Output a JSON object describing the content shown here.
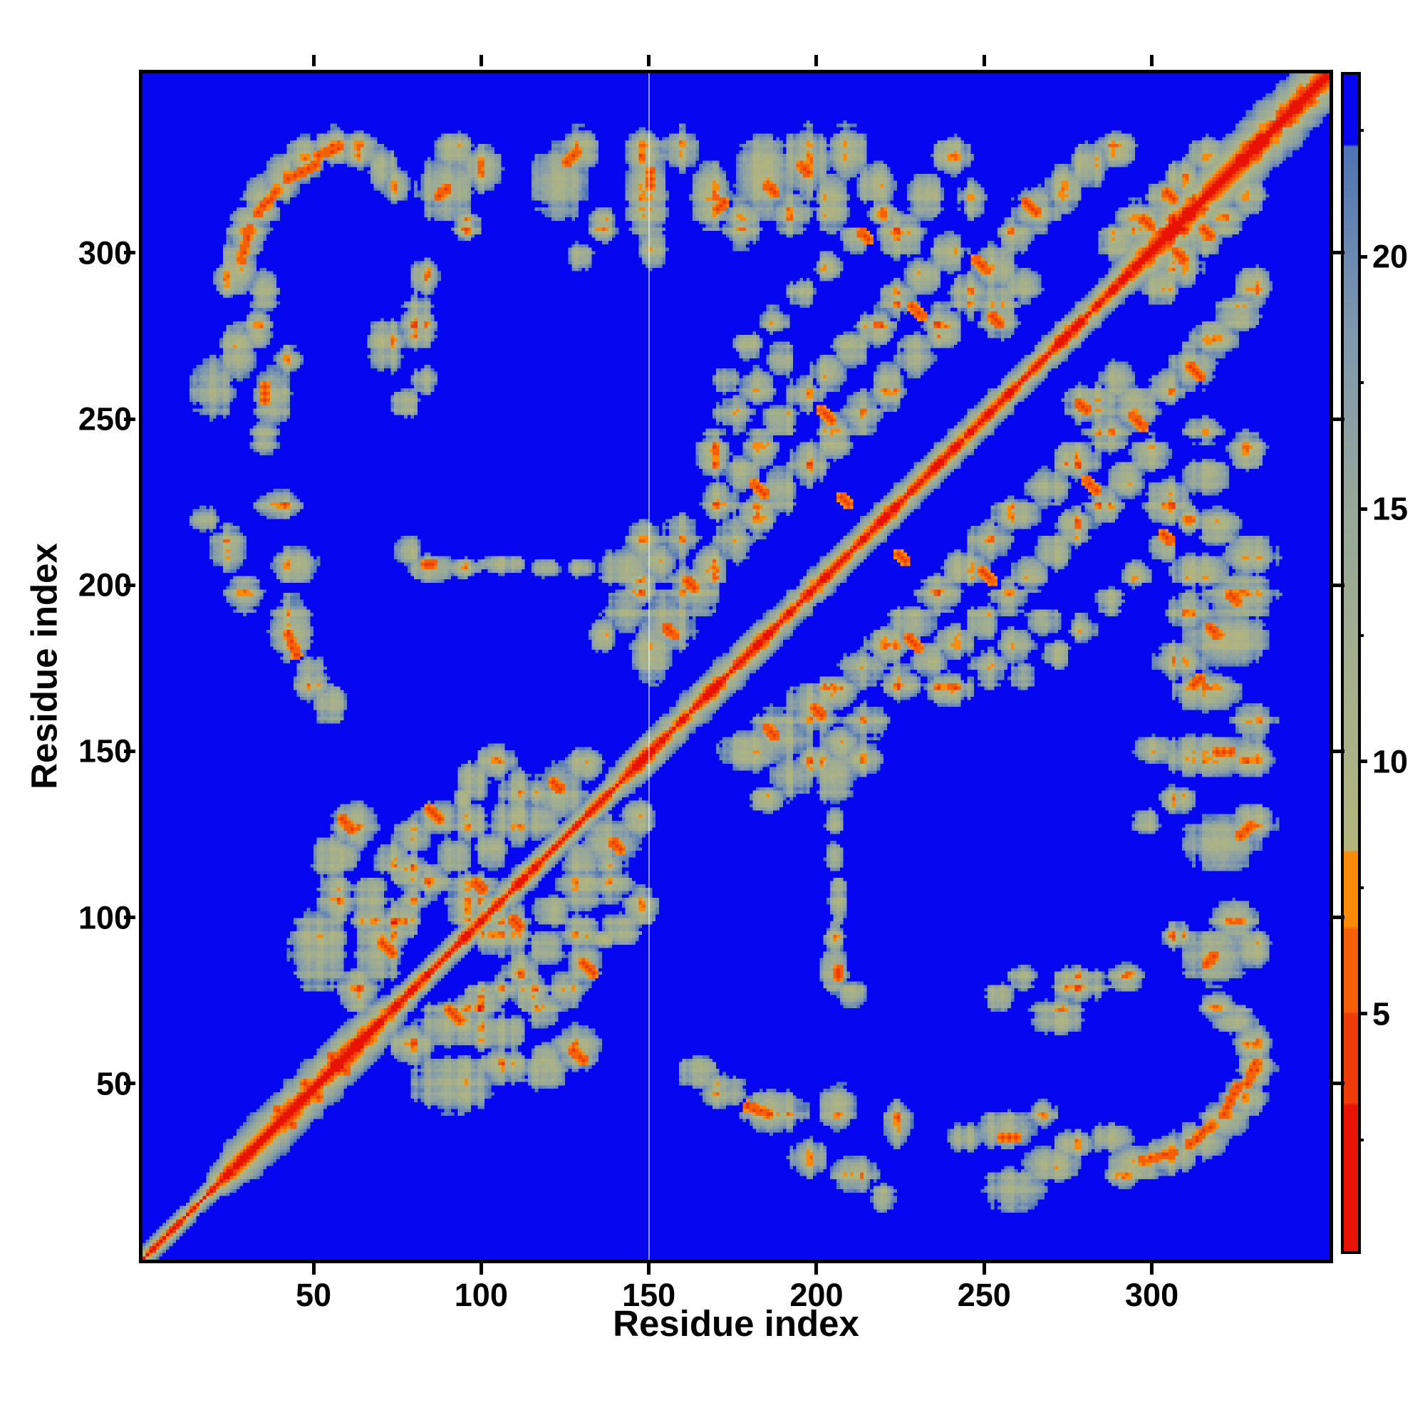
{
  "figure": {
    "title": "",
    "x_axis_label": "Residue index",
    "y_axis_label": "Residue index"
  },
  "chart_data": {
    "type": "heatmap",
    "title": "",
    "xlabel": "Residue index",
    "ylabel": "Residue index",
    "x_range": [
      -1,
      353
    ],
    "y_range": [
      -3,
      354
    ],
    "x_ticks": [
      50,
      100,
      150,
      200,
      250,
      300
    ],
    "y_ticks": [
      50,
      100,
      150,
      200,
      250,
      300
    ],
    "grid": false,
    "legend": "none",
    "n_residues": 354,
    "symmetric": true,
    "description": "Residue-residue distance map: red diagonal (near-zero distance), orange close contacts, olive-gray mid-range distances, blue beyond cutoff",
    "artifact_line_x": 150,
    "colorbar": {
      "position": "right",
      "range": [
        0.3,
        23.6
      ],
      "ticks": [
        5,
        10,
        15,
        20
      ],
      "minor_ticks": [
        2.5,
        7.5,
        12.5,
        17.5,
        22.5
      ]
    },
    "colormap": {
      "bands": [
        {
          "max": 3.2,
          "color": "#e81205"
        },
        {
          "max": 5.0,
          "color": "#ef3b08"
        },
        {
          "max": 6.7,
          "color": "#f56006"
        },
        {
          "max": 8.2,
          "color": "#fa8a07"
        }
      ],
      "gradient": {
        "min": 8.2,
        "max": 22.2,
        "stops": [
          "#b3b57c",
          "#a4af8d",
          "#96a79b",
          "#7e97af",
          "#4f74b4"
        ]
      },
      "over_color": "#0606f0",
      "max_value": 24
    },
    "diagonal_band": {
      "segments": [
        [
          0,
          30,
          4.2
        ],
        [
          30,
          68,
          10
        ],
        [
          68,
          145,
          5.5
        ],
        [
          145,
          185,
          7.5
        ],
        [
          185,
          300,
          6.5
        ],
        [
          300,
          354,
          12
        ]
      ]
    },
    "contact_clusters": [
      [
        28,
        296,
        4,
        6
      ],
      [
        31,
        306,
        4,
        6
      ],
      [
        35,
        315,
        4,
        6
      ],
      [
        41,
        322,
        4,
        5
      ],
      [
        48,
        328,
        4,
        5
      ],
      [
        56,
        332,
        4,
        4
      ],
      [
        64,
        331,
        4,
        4
      ],
      [
        71,
        325,
        3,
        5
      ],
      [
        36,
        288,
        3,
        5
      ],
      [
        34,
        278,
        3,
        5
      ],
      [
        25,
        292,
        3,
        4
      ],
      [
        43,
        268,
        3,
        3
      ],
      [
        38,
        257,
        4,
        7
      ],
      [
        36,
        245,
        3,
        4
      ],
      [
        40,
        225,
        5,
        3
      ],
      [
        45,
        207,
        5,
        4
      ],
      [
        44,
        188,
        5,
        7
      ],
      [
        50,
        173,
        4,
        5
      ],
      [
        55,
        165,
        4,
        4
      ],
      [
        20,
        260,
        5,
        7
      ],
      [
        28,
        270,
        4,
        6
      ],
      [
        25,
        212,
        4,
        5
      ],
      [
        30,
        198,
        4,
        4
      ],
      [
        18,
        220,
        3,
        3
      ],
      [
        84,
        293,
        3,
        4
      ],
      [
        82,
        279,
        4,
        6
      ],
      [
        84,
        262,
        3,
        3
      ],
      [
        78,
        255,
        3,
        3
      ],
      [
        72,
        272,
        4,
        6
      ],
      [
        90,
        319,
        6,
        7
      ],
      [
        101,
        325,
        4,
        5
      ],
      [
        92,
        331,
        4,
        4
      ],
      [
        96,
        308,
        3,
        3
      ],
      [
        75,
        320,
        3,
        4
      ],
      [
        124,
        321,
        6,
        8
      ],
      [
        130,
        331,
        4,
        5
      ],
      [
        137,
        308,
        3,
        4
      ],
      [
        130,
        299,
        3,
        3
      ],
      [
        150,
        317,
        5,
        9
      ],
      [
        152,
        301,
        3,
        4
      ],
      [
        149,
        330,
        4,
        5
      ],
      [
        160,
        331,
        4,
        5
      ],
      [
        169,
        317,
        5,
        7
      ],
      [
        178,
        309,
        4,
        6
      ],
      [
        185,
        323,
        6,
        9
      ],
      [
        197,
        327,
        5,
        8
      ],
      [
        205,
        315,
        4,
        6
      ],
      [
        193,
        312,
        4,
        5
      ],
      [
        210,
        330,
        4,
        6
      ],
      [
        218,
        320,
        4,
        5
      ],
      [
        226,
        305,
        5,
        5
      ],
      [
        233,
        317,
        4,
        5
      ],
      [
        241,
        329,
        4,
        4
      ],
      [
        247,
        316,
        3,
        4
      ],
      [
        254,
        296,
        5,
        5
      ],
      [
        260,
        305,
        4,
        4
      ],
      [
        266,
        313,
        5,
        5
      ],
      [
        274,
        319,
        4,
        5
      ],
      [
        282,
        326,
        4,
        5
      ],
      [
        290,
        331,
        4,
        4
      ],
      [
        255,
        283,
        5,
        6
      ],
      [
        262,
        290,
        4,
        4
      ],
      [
        246,
        287,
        4,
        5
      ],
      [
        238,
        278,
        4,
        5
      ],
      [
        230,
        269,
        4,
        5
      ],
      [
        222,
        260,
        4,
        5
      ],
      [
        214,
        252,
        4,
        5
      ],
      [
        206,
        245,
        4,
        5
      ],
      [
        198,
        237,
        4,
        5
      ],
      [
        190,
        229,
        4,
        5
      ],
      [
        183,
        222,
        4,
        5
      ],
      [
        176,
        214,
        4,
        5
      ],
      [
        169,
        206,
        4,
        5
      ],
      [
        163,
        199,
        6,
        6
      ],
      [
        157,
        190,
        6,
        7
      ],
      [
        152,
        180,
        5,
        6
      ],
      [
        160,
        215,
        4,
        5
      ],
      [
        154,
        208,
        4,
        4
      ],
      [
        148,
        200,
        4,
        4
      ],
      [
        143,
        193,
        4,
        5
      ],
      [
        137,
        186,
        3,
        4
      ],
      [
        172,
        226,
        4,
        4
      ],
      [
        178,
        234,
        4,
        4
      ],
      [
        184,
        242,
        4,
        4
      ],
      [
        190,
        250,
        4,
        4
      ],
      [
        197,
        258,
        4,
        4
      ],
      [
        204,
        264,
        4,
        4
      ],
      [
        211,
        271,
        4,
        4
      ],
      [
        218,
        278,
        4,
        4
      ],
      [
        225,
        286,
        4,
        4
      ],
      [
        232,
        293,
        4,
        4
      ],
      [
        240,
        300,
        4,
        4
      ],
      [
        170,
        240,
        4,
        5
      ],
      [
        176,
        252,
        4,
        4
      ],
      [
        183,
        260,
        4,
        4
      ],
      [
        190,
        268,
        3,
        4
      ],
      [
        174,
        262,
        3,
        3
      ],
      [
        180,
        272,
        3,
        3
      ],
      [
        188,
        280,
        3,
        3
      ],
      [
        196,
        288,
        3,
        3
      ],
      [
        204,
        296,
        3,
        3
      ],
      [
        212,
        304,
        3,
        3
      ],
      [
        220,
        312,
        3,
        3
      ],
      [
        86,
        206,
        5,
        3
      ],
      [
        79,
        211,
        3,
        3
      ],
      [
        95,
        206,
        4,
        2
      ],
      [
        107,
        207,
        5,
        2
      ],
      [
        120,
        206,
        3,
        2
      ],
      [
        130,
        206,
        3,
        2
      ],
      [
        143,
        206,
        5,
        5
      ],
      [
        149,
        214,
        4,
        4
      ],
      [
        63,
        129,
        5,
        5
      ],
      [
        55,
        120,
        4,
        5
      ],
      [
        52,
        92,
        6,
        9
      ],
      [
        57,
        107,
        4,
        5
      ],
      [
        68,
        101,
        4,
        4
      ],
      [
        74,
        119,
        4,
        4
      ],
      [
        80,
        126,
        4,
        4
      ],
      [
        88,
        131,
        5,
        4
      ],
      [
        98,
        108,
        6,
        5
      ],
      [
        104,
        96,
        4,
        4
      ],
      [
        94,
        71,
        5,
        5
      ],
      [
        101,
        77,
        4,
        4
      ],
      [
        108,
        68,
        4,
        4
      ],
      [
        116,
        79,
        4,
        4
      ],
      [
        124,
        139,
        6,
        6
      ],
      [
        119,
        130,
        4,
        4
      ],
      [
        131,
        147,
        4,
        4
      ],
      [
        139,
        118,
        3,
        3
      ],
      [
        137,
        95,
        3,
        2
      ],
      [
        127,
        63,
        3,
        3
      ],
      [
        120,
        60,
        3,
        3
      ],
      [
        70,
        90,
        5,
        6
      ],
      [
        64,
        80,
        4,
        5
      ],
      [
        75,
        100,
        4,
        4
      ],
      [
        110,
        130,
        5,
        5
      ],
      [
        104,
        122,
        4,
        4
      ],
      [
        97,
        130,
        4,
        4
      ],
      [
        111,
        140,
        4,
        4
      ],
      [
        105,
        148,
        4,
        4
      ],
      [
        98,
        142,
        4,
        4
      ],
      [
        92,
        120,
        4,
        4
      ],
      [
        86,
        112,
        4,
        4
      ],
      [
        80,
        107,
        3,
        3
      ],
      [
        297,
        309,
        5,
        5
      ],
      [
        304,
        316,
        4,
        4
      ],
      [
        310,
        322,
        4,
        4
      ],
      [
        317,
        329,
        4,
        4
      ],
      [
        290,
        303,
        4,
        4
      ]
    ],
    "contact_hotspots": [
      [
        29,
        298,
        5,
        0.6,
        2.2
      ],
      [
        34,
        312,
        5,
        1.4,
        1.6
      ],
      [
        43,
        322,
        5,
        2,
        1
      ],
      [
        52,
        329,
        4,
        2,
        0.8
      ],
      [
        36,
        260,
        3,
        0,
        -2
      ],
      [
        43,
        186,
        4,
        0.8,
        -2
      ],
      [
        88,
        317,
        3,
        1,
        1
      ],
      [
        126,
        327,
        4,
        1,
        1
      ],
      [
        151,
        320,
        3,
        0,
        2
      ],
      [
        171,
        313,
        3,
        1,
        1
      ],
      [
        59,
        131,
        4,
        1,
        -1
      ],
      [
        85,
        134,
        4,
        1,
        -1
      ],
      [
        91,
        74,
        4,
        1,
        -1
      ],
      [
        99,
        112,
        3,
        1,
        -1
      ],
      [
        122,
        142,
        3,
        1,
        -1
      ],
      [
        182,
        231,
        4,
        1,
        -1
      ],
      [
        202,
        253,
        4,
        1,
        -1
      ],
      [
        208,
        227,
        3,
        1,
        -1
      ],
      [
        229,
        284,
        4,
        1,
        -1
      ],
      [
        248,
        298,
        4,
        1,
        -1
      ],
      [
        263,
        315,
        4,
        1,
        -1
      ],
      [
        253,
        281,
        3,
        1,
        -1
      ],
      [
        214,
        306,
        3,
        1,
        -1
      ],
      [
        196,
        326,
        3,
        1,
        -1
      ],
      [
        186,
        320,
        3,
        1,
        -1
      ],
      [
        162,
        202,
        3,
        1,
        -1
      ],
      [
        156,
        188,
        3,
        1,
        -1
      ],
      [
        305,
        318,
        3,
        1,
        -1
      ],
      [
        298,
        310,
        3,
        1,
        -1
      ],
      [
        84,
        207,
        3,
        1,
        0
      ],
      [
        40,
        44,
        3,
        1,
        -1
      ],
      [
        48,
        52,
        3,
        1,
        -1
      ],
      [
        56,
        60,
        3,
        1,
        -1
      ]
    ]
  }
}
